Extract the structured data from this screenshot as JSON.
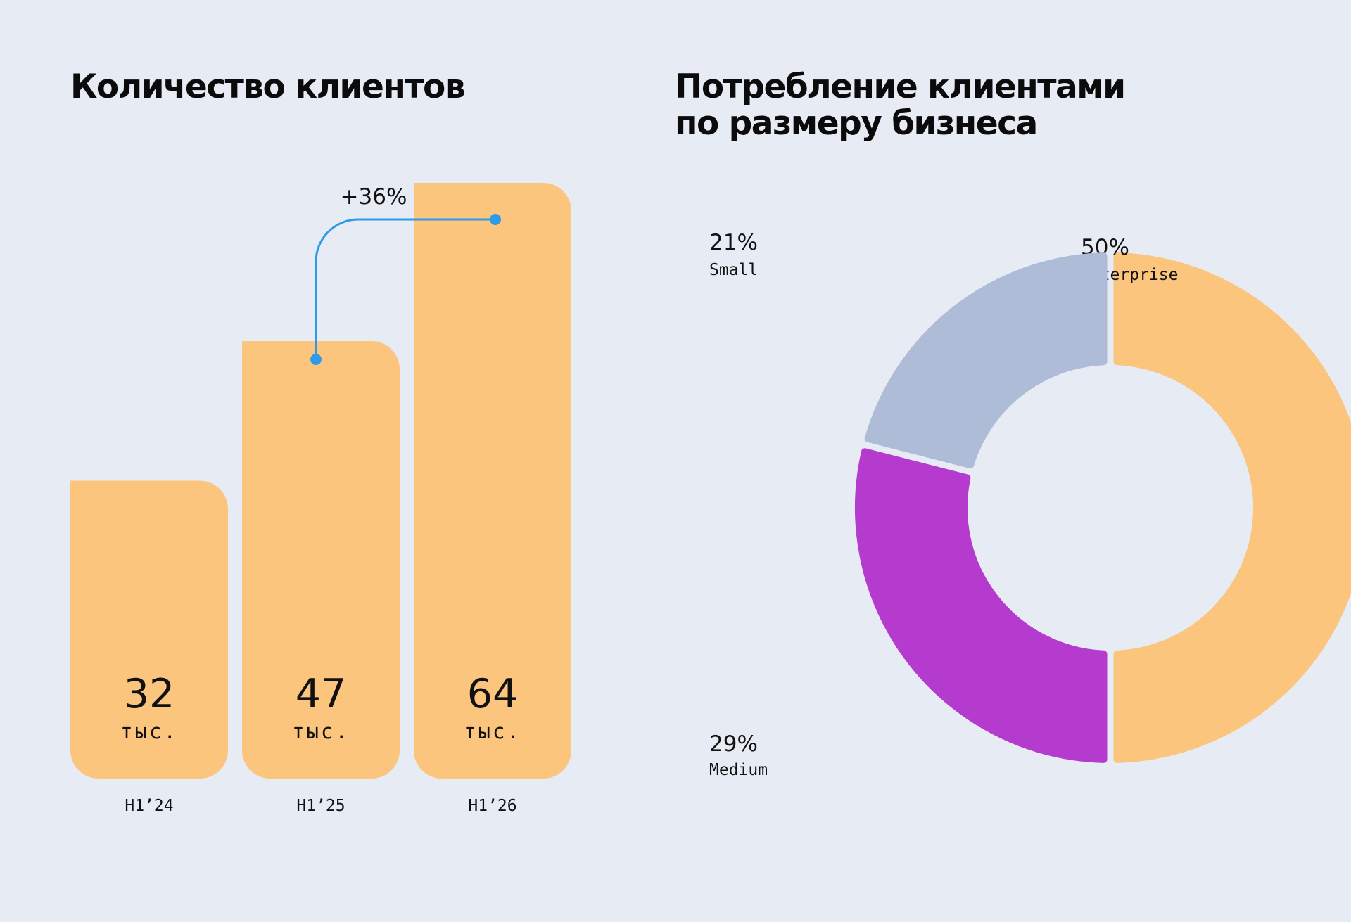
{
  "titles": {
    "left": "Количество клиентов",
    "right_line1": "Потребление клиентами",
    "right_line2": "по размеру бизнеса"
  },
  "colors": {
    "background": "#e7ebf4",
    "bar": "#fbc57e",
    "connector": "#2e9be8",
    "enterprise": "#fbc57e",
    "medium": "#b53bcf",
    "small": "#aebcd8",
    "text": "#111111"
  },
  "chart_data": [
    {
      "type": "bar",
      "categories": [
        "H1’24",
        "H1’25",
        "H1’26"
      ],
      "values": [
        32,
        47,
        64
      ],
      "value_labels": [
        "32",
        "47",
        "64"
      ],
      "unit_label": "тыс.",
      "title": "Количество клиентов",
      "ylim": [
        0,
        64
      ],
      "grid": false,
      "annotation": {
        "text": "+36%",
        "from_category": "H1’25",
        "to_category": "H1’26"
      }
    },
    {
      "type": "pie",
      "donut": true,
      "title": "Потребление клиентами по размеру бизнеса",
      "slices": [
        {
          "name": "Enterprise",
          "value": 50,
          "label": "50%"
        },
        {
          "name": "Medium",
          "value": 29,
          "label": "29%"
        },
        {
          "name": "Small",
          "value": 21,
          "label": "21%"
        }
      ]
    }
  ]
}
